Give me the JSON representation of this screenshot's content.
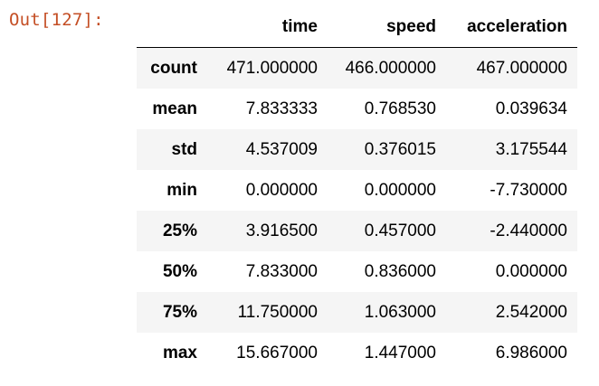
{
  "cell": {
    "prompt": "Out[127]:"
  },
  "table": {
    "columns": [
      "",
      "time",
      "speed",
      "acceleration"
    ],
    "rows": [
      {
        "label": "count",
        "values": [
          "471.000000",
          "466.000000",
          "467.000000"
        ]
      },
      {
        "label": "mean",
        "values": [
          "7.833333",
          "0.768530",
          "0.039634"
        ]
      },
      {
        "label": "std",
        "values": [
          "4.537009",
          "0.376015",
          "3.175544"
        ]
      },
      {
        "label": "min",
        "values": [
          "0.000000",
          "0.000000",
          "-7.730000"
        ]
      },
      {
        "label": "25%",
        "values": [
          "3.916500",
          "0.457000",
          "-2.440000"
        ]
      },
      {
        "label": "50%",
        "values": [
          "7.833000",
          "0.836000",
          "0.000000"
        ]
      },
      {
        "label": "75%",
        "values": [
          "11.750000",
          "1.063000",
          "2.542000"
        ]
      },
      {
        "label": "max",
        "values": [
          "15.667000",
          "1.447000",
          "6.986000"
        ]
      }
    ]
  },
  "colors": {
    "prompt": "#c44e24",
    "stripe": "#f5f5f5"
  }
}
